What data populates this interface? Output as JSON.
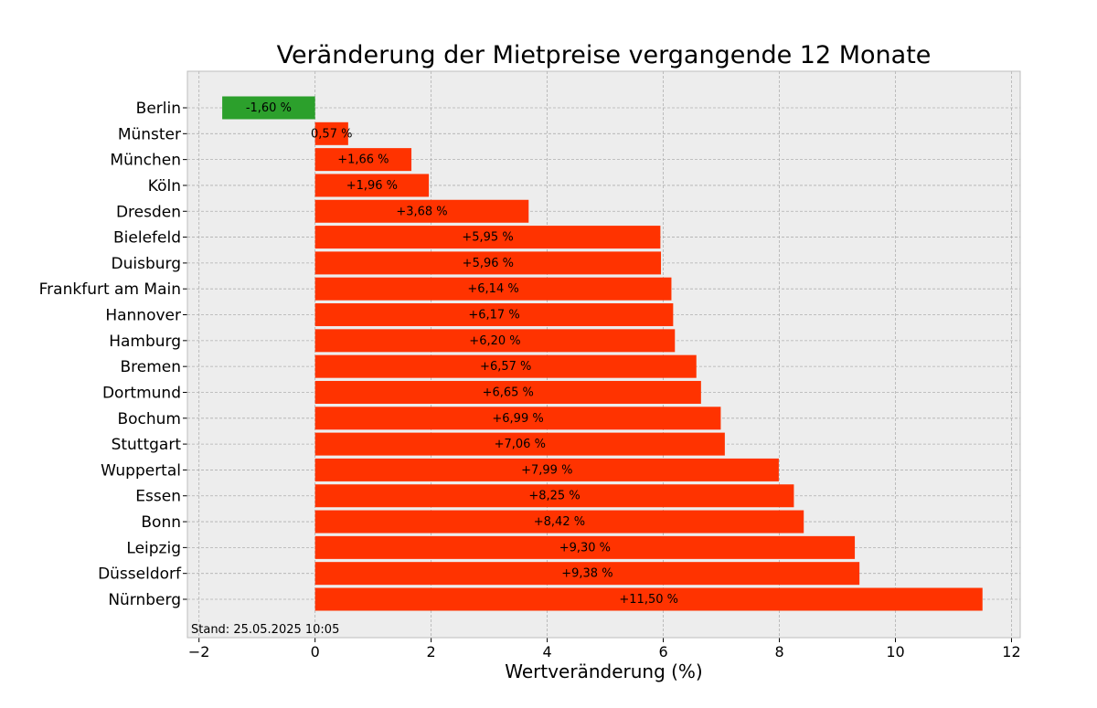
{
  "chart_data": {
    "type": "bar",
    "orientation": "horizontal",
    "title": "Veränderung der Mietpreise vergangende 12 Monate",
    "xlabel": "Wertveränderung (%)",
    "ylabel": "",
    "xlim": [
      -2.2,
      12.15
    ],
    "xticks": [
      -2,
      0,
      2,
      4,
      6,
      8,
      10,
      12
    ],
    "xtick_labels": [
      "−2",
      "0",
      "2",
      "4",
      "6",
      "8",
      "10",
      "12"
    ],
    "grid": true,
    "categories": [
      "Berlin",
      "Münster",
      "München",
      "Köln",
      "Dresden",
      "Bielefeld",
      "Duisburg",
      "Frankfurt am Main",
      "Hannover",
      "Hamburg",
      "Bremen",
      "Dortmund",
      "Bochum",
      "Stuttgart",
      "Wuppertal",
      "Essen",
      "Bonn",
      "Leipzig",
      "Düsseldorf",
      "Nürnberg"
    ],
    "values": [
      -1.6,
      0.57,
      1.66,
      1.96,
      3.68,
      5.95,
      5.96,
      6.14,
      6.17,
      6.2,
      6.57,
      6.65,
      6.99,
      7.06,
      7.99,
      8.25,
      8.42,
      9.3,
      9.38,
      11.5
    ],
    "value_labels": [
      "-1,60 %",
      "0,57 %",
      "+1,66 %",
      "+1,96 %",
      "+3,68 %",
      "+5,95 %",
      "+5,96 %",
      "+6,14 %",
      "+6,17 %",
      "+6,20 %",
      "+6,57 %",
      "+6,65 %",
      "+6,99 %",
      "+7,06 %",
      "+7,99 %",
      "+8,25 %",
      "+8,42 %",
      "+9,30 %",
      "+9,38 %",
      "+11,50 %"
    ],
    "colors": {
      "negative": "#2ca02c",
      "positive": "#ff3300",
      "plot_background": "#ededed",
      "grid": "#b0b0b0"
    },
    "annotation": "Stand: 25.05.2025 10:05"
  }
}
